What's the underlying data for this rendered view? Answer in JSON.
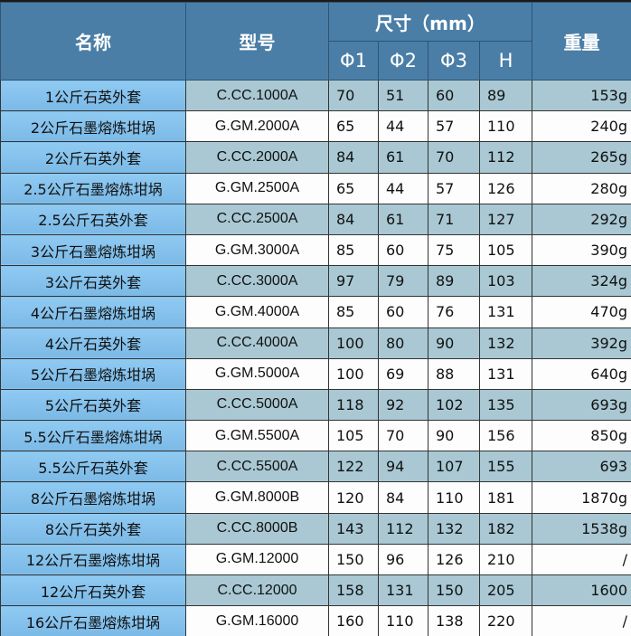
{
  "headers": {
    "name": "名称",
    "model": "型号",
    "size": "尺寸（mm）",
    "weight": "重量",
    "phi1": "Φ1",
    "phi2": "Φ2",
    "phi3": "Φ3",
    "h": "H"
  },
  "rows": [
    [
      "1公斤石英外套",
      "C.CC.1000A",
      "70",
      "51",
      "60",
      "89",
      "153g"
    ],
    [
      "2公斤石墨熔炼坩埚",
      "G.GM.2000A",
      "65",
      "44",
      "57",
      "110",
      "240g"
    ],
    [
      "2公斤石英外套",
      "C.CC.2000A",
      "84",
      "61",
      "70",
      "112",
      "265g"
    ],
    [
      "2.5公斤石墨熔炼坩埚",
      "G.GM.2500A",
      "65",
      "44",
      "57",
      "126",
      "280g"
    ],
    [
      "2.5公斤石英外套",
      "C.CC.2500A",
      "84",
      "61",
      "71",
      "127",
      "292g"
    ],
    [
      "3公斤石墨熔炼坩埚",
      "G.GM.3000A",
      "85",
      "60",
      "75",
      "105",
      "390g"
    ],
    [
      "3公斤石英外套",
      "C.CC.3000A",
      "97",
      "79",
      "89",
      "103",
      "324g"
    ],
    [
      "4公斤石墨熔炼坩埚",
      "G.GM.4000A",
      "85",
      "60",
      "76",
      "131",
      "470g"
    ],
    [
      "4公斤石英外套",
      "C.CC.4000A",
      "100",
      "80",
      "90",
      "132",
      "392g"
    ],
    [
      "5公斤石墨熔炼坩埚",
      "G.GM.5000A",
      "100",
      "69",
      "88",
      "131",
      "640g"
    ],
    [
      "5公斤石英外套",
      "C.CC.5000A",
      "118",
      "92",
      "102",
      "135",
      "693g"
    ],
    [
      "5.5公斤石墨熔炼坩埚",
      "G.GM.5500A",
      "105",
      "70",
      "90",
      "156",
      "850g"
    ],
    [
      "5.5公斤石英外套",
      "C.CC.5500A",
      "122",
      "94",
      "107",
      "155",
      "693"
    ],
    [
      "8公斤石墨熔炼坩埚",
      "G.GM.8000B",
      "120",
      "84",
      "110",
      "181",
      "1870g"
    ],
    [
      "8公斤石英外套",
      "C.CC.8000B",
      "143",
      "112",
      "132",
      "182",
      "1538g"
    ],
    [
      "12公斤石墨熔炼坩埚",
      "G.GM.12000",
      "150",
      "96",
      "126",
      "210",
      "/"
    ],
    [
      "12公斤石英外套",
      "C.CC.12000",
      "158",
      "131",
      "150",
      "205",
      "1600"
    ],
    [
      "16公斤石墨熔炼坩埚",
      "G.GM.16000",
      "160",
      "110",
      "138",
      "220",
      "/"
    ]
  ]
}
